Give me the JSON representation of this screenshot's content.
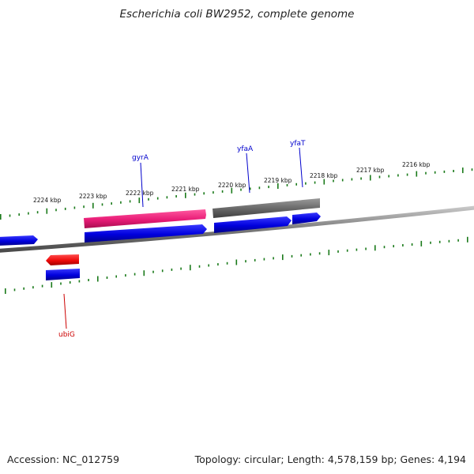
{
  "title": "Escherichia coli BW2952, complete genome",
  "footer": {
    "accession": "Accession: NC_012759",
    "summary": "Topology: circular; Length: 4,578,159 bp; Genes: 4,194"
  },
  "scale_labels": [
    "2224 kbp",
    "2223 kbp",
    "2222 kbp",
    "2221 kbp",
    "2220 kbp",
    "2219 kbp",
    "2218 kbp",
    "2217 kbp",
    "2216 kbp"
  ],
  "gene_labels": [
    {
      "name": "gyrA",
      "color": "#0000cc"
    },
    {
      "name": "yfaA",
      "color": "#0000cc"
    },
    {
      "name": "yfaT",
      "color": "#0000cc"
    },
    {
      "name": "ubiG",
      "color": "#cc0000"
    }
  ],
  "colors": {
    "cds_forward": "#1010e0",
    "rrna_pink": "#e8287a",
    "pseudo_gray": "#707070",
    "cds_reverse_red": "#ee1010",
    "backbone": "#808080",
    "ticks": "#1a7a1a"
  }
}
